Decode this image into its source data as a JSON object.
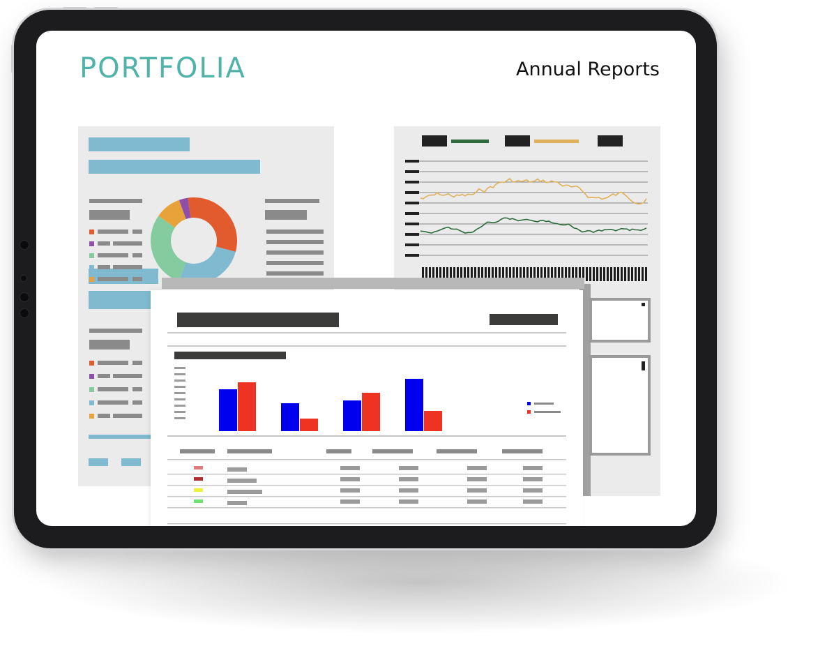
{
  "header": {
    "logo_text": "PORTFOLIA",
    "page_title": "Annual Reports"
  },
  "colors": {
    "logo": "#4fb3a9",
    "bezel": "#1c1c1e",
    "chart_blue": "#0000ee",
    "chart_red": "#ee3322",
    "line_gold": "#e0b15a",
    "line_green": "#2e6b3c",
    "donut": [
      "#e25b2f",
      "#7fbad0",
      "#85cba0",
      "#e8a23a",
      "#8e4fa8"
    ]
  },
  "icons": [
    "donut-chart-icon",
    "line-chart-icon",
    "bar-chart-icon",
    "table-icon"
  ]
}
